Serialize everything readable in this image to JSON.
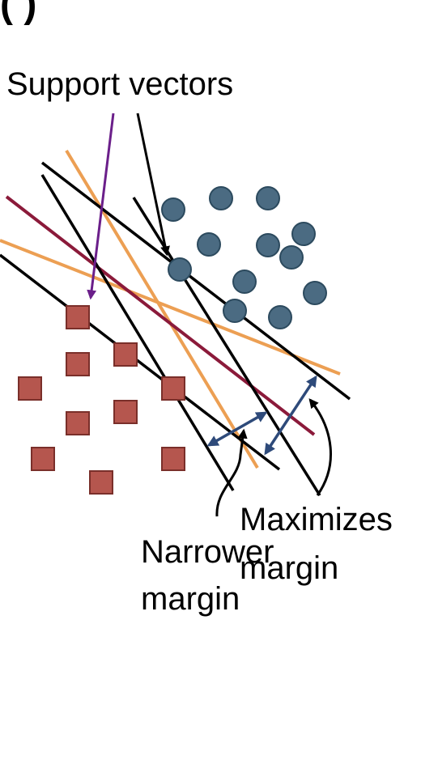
{
  "title_fragment": "( )",
  "labels": {
    "support_vectors": "Support vectors",
    "maximizes_1": "Maximizes",
    "maximizes_2": "margin",
    "narrower_1": "Narrower",
    "narrower_2": "margin"
  },
  "colors": {
    "circle_fill": "#4b6b82",
    "square_fill": "#b5564e",
    "orange_line": "#ec9f53",
    "maroon_line": "#8b1a3a",
    "purple_arrow": "#6b1f8a",
    "blue_arrow": "#2e4a7a",
    "black_line": "#000000"
  },
  "icons": {
    "class_a": "circle",
    "class_b": "square"
  }
}
